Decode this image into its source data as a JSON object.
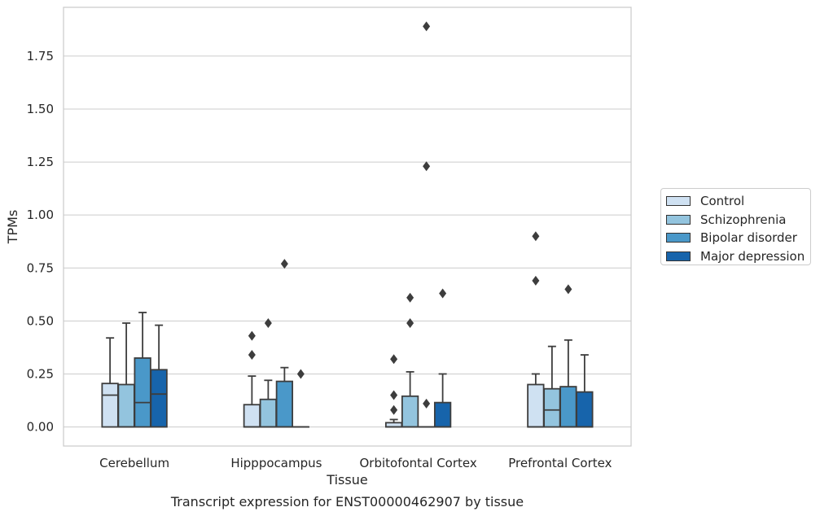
{
  "chart_data": {
    "type": "boxplot",
    "xlabel": "Tissue",
    "ylabel": "TPMs",
    "caption": "Transcript expression for ENST00000462907 by tissue",
    "ylim": [
      -0.09,
      1.98
    ],
    "yticks": [
      "0.00",
      "0.25",
      "0.50",
      "0.75",
      "1.00",
      "1.25",
      "1.50",
      "1.75"
    ],
    "grid": "horizontal",
    "legend_position": "right",
    "categories": [
      "Cerebellum",
      "Hipppocampus",
      "Orbitofontal Cortex",
      "Prefrontal Cortex"
    ],
    "series": [
      {
        "name": "Control",
        "color": "#cfe1f2",
        "boxes": [
          {
            "q1": 0.0,
            "median": 0.15,
            "q3": 0.205,
            "whisker_low": 0.0,
            "whisker_high": 0.42,
            "outliers": []
          },
          {
            "q1": 0.0,
            "median": 0.0,
            "q3": 0.105,
            "whisker_low": 0.0,
            "whisker_high": 0.24,
            "outliers": [
              0.34,
              0.43
            ]
          },
          {
            "q1": 0.0,
            "median": 0.0,
            "q3": 0.02,
            "whisker_low": 0.0,
            "whisker_high": 0.035,
            "outliers": [
              0.08,
              0.15,
              0.32
            ]
          },
          {
            "q1": 0.0,
            "median": 0.0,
            "q3": 0.2,
            "whisker_low": 0.0,
            "whisker_high": 0.25,
            "outliers": [
              0.69,
              0.9
            ]
          }
        ]
      },
      {
        "name": "Schizophrenia",
        "color": "#93c4de",
        "boxes": [
          {
            "q1": 0.0,
            "median": 0.0,
            "q3": 0.2,
            "whisker_low": 0.0,
            "whisker_high": 0.49,
            "outliers": []
          },
          {
            "q1": 0.0,
            "median": 0.0,
            "q3": 0.13,
            "whisker_low": 0.0,
            "whisker_high": 0.22,
            "outliers": [
              0.49
            ]
          },
          {
            "q1": 0.0,
            "median": 0.0,
            "q3": 0.145,
            "whisker_low": 0.0,
            "whisker_high": 0.26,
            "outliers": [
              0.49,
              0.61
            ]
          },
          {
            "q1": 0.0,
            "median": 0.08,
            "q3": 0.18,
            "whisker_low": 0.0,
            "whisker_high": 0.38,
            "outliers": []
          }
        ]
      },
      {
        "name": "Bipolar disorder",
        "color": "#4a98c9",
        "boxes": [
          {
            "q1": 0.0,
            "median": 0.115,
            "q3": 0.325,
            "whisker_low": 0.0,
            "whisker_high": 0.54,
            "outliers": []
          },
          {
            "q1": 0.0,
            "median": 0.0,
            "q3": 0.215,
            "whisker_low": 0.0,
            "whisker_high": 0.28,
            "outliers": [
              0.77
            ]
          },
          {
            "q1": 0.0,
            "median": 0.0,
            "q3": 0.0,
            "whisker_low": 0.0,
            "whisker_high": 0.0,
            "outliers": [
              0.11,
              1.23,
              1.89
            ]
          },
          {
            "q1": 0.0,
            "median": 0.0,
            "q3": 0.19,
            "whisker_low": 0.0,
            "whisker_high": 0.41,
            "outliers": [
              0.65
            ]
          }
        ]
      },
      {
        "name": "Major depression",
        "color": "#1764ab",
        "boxes": [
          {
            "q1": 0.0,
            "median": 0.155,
            "q3": 0.27,
            "whisker_low": 0.0,
            "whisker_high": 0.48,
            "outliers": []
          },
          {
            "q1": 0.0,
            "median": 0.0,
            "q3": 0.0,
            "whisker_low": 0.0,
            "whisker_high": 0.0,
            "outliers": [
              0.25
            ]
          },
          {
            "q1": 0.0,
            "median": 0.0,
            "q3": 0.115,
            "whisker_low": 0.0,
            "whisker_high": 0.25,
            "outliers": [
              0.63
            ]
          },
          {
            "q1": 0.0,
            "median": 0.0,
            "q3": 0.165,
            "whisker_low": 0.0,
            "whisker_high": 0.34,
            "outliers": []
          }
        ]
      }
    ]
  }
}
